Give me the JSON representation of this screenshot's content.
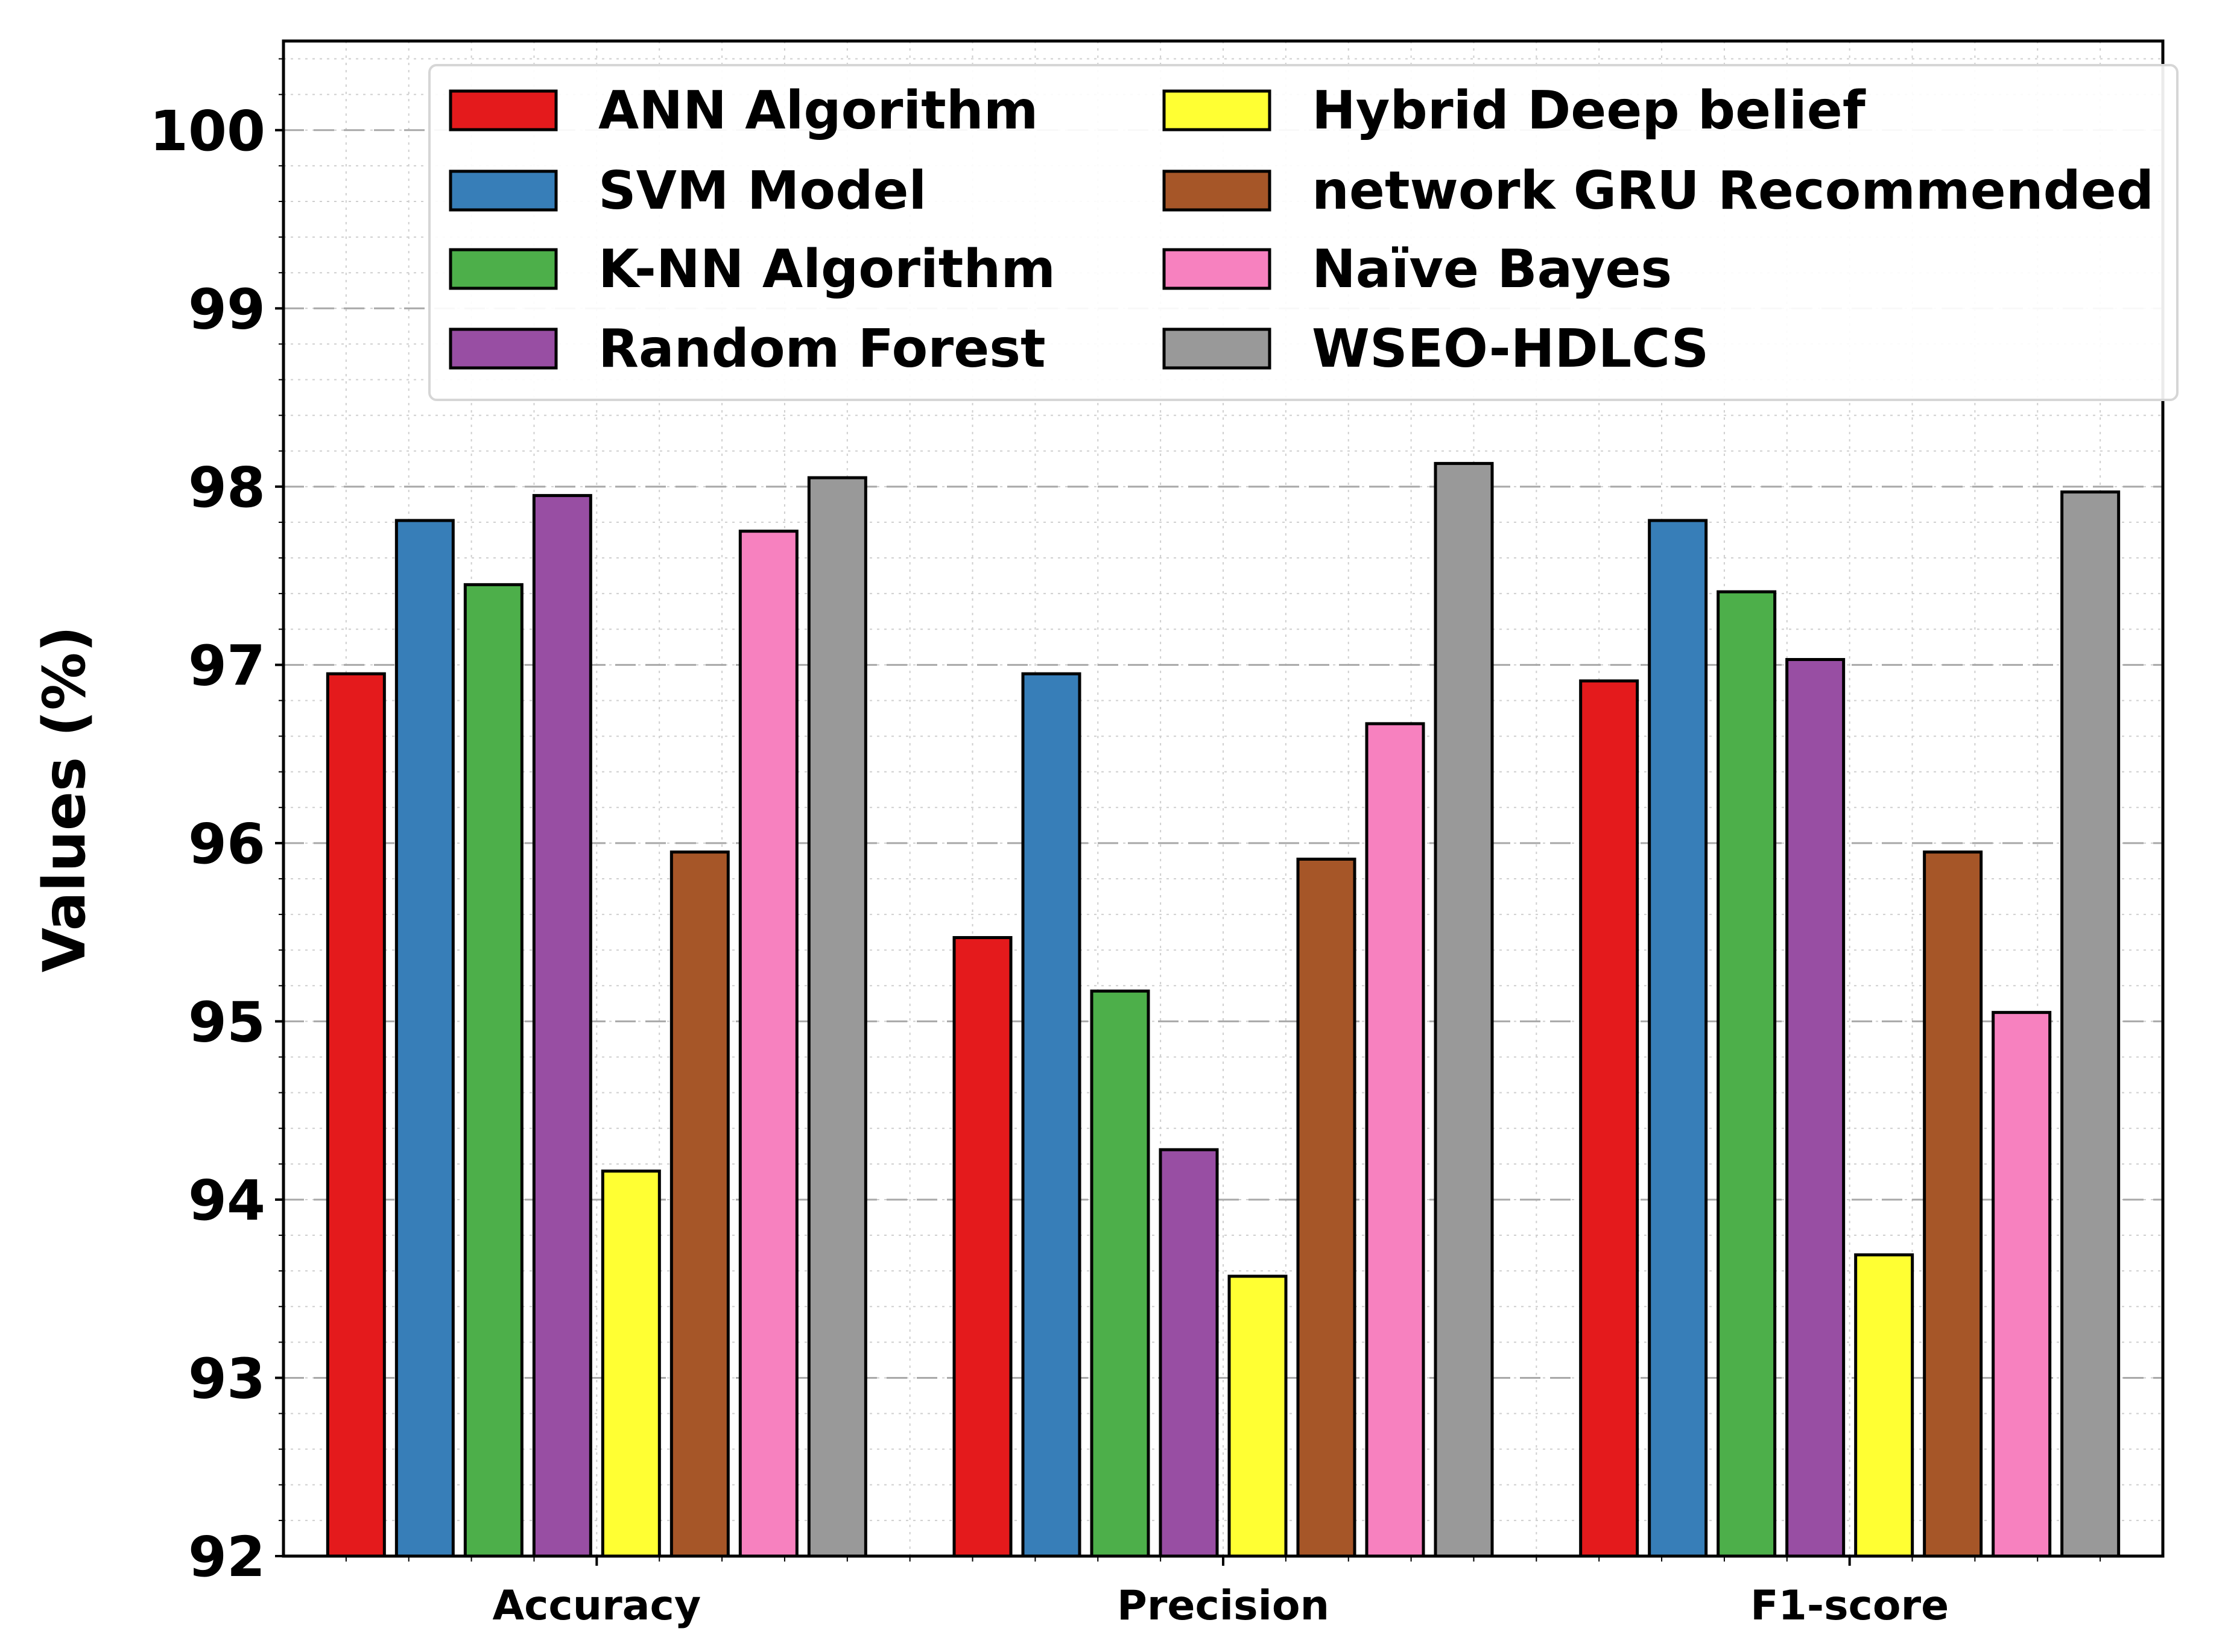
{
  "chart_data": {
    "type": "bar",
    "title": "",
    "xlabel": "",
    "ylabel": "Values (%)",
    "ylim": [
      92,
      100.5
    ],
    "yticks": [
      92,
      93,
      94,
      95,
      96,
      97,
      98,
      99,
      100
    ],
    "grid": true,
    "legend_position": "top",
    "categories": [
      "Accuracy",
      "Precision",
      "F1-score"
    ],
    "series": [
      {
        "name": "ANN Algorithm",
        "color": "#e41a1c",
        "values": [
          96.95,
          95.47,
          96.91
        ]
      },
      {
        "name": "SVM Model",
        "color": "#377eb8",
        "values": [
          97.81,
          96.95,
          97.81
        ]
      },
      {
        "name": "K-NN Algorithm",
        "color": "#4daf4a",
        "values": [
          97.45,
          95.17,
          97.41
        ]
      },
      {
        "name": "Random Forest",
        "color": "#984ea3",
        "values": [
          97.95,
          94.28,
          97.03
        ]
      },
      {
        "name": "Hybrid Deep belief",
        "color": "#ffff33",
        "values": [
          94.16,
          93.57,
          93.69
        ]
      },
      {
        "name": "network GRU Recommended",
        "color": "#a65628",
        "values": [
          95.95,
          95.91,
          95.95
        ]
      },
      {
        "name": "Naïve Bayes",
        "color": "#f781bf",
        "values": [
          97.75,
          96.67,
          95.05
        ]
      },
      {
        "name": "WSEO-HDLCS",
        "color": "#999999",
        "values": [
          98.05,
          98.13,
          97.97
        ]
      }
    ]
  }
}
